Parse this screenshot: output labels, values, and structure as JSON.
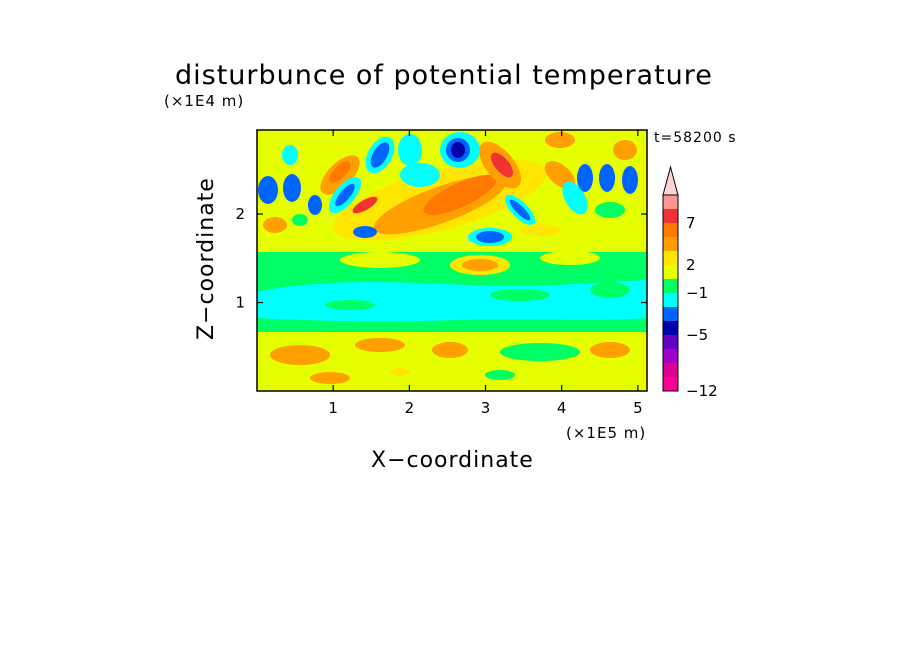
{
  "chart_data": {
    "type": "heatmap",
    "title": "disturbunce of potential temperature",
    "xlabel": "X−coordinate",
    "ylabel": "Z−coordinate",
    "x_unit": "(×1E5 m)",
    "z_unit": "(×1E4 m)",
    "time_label": "t=58200 s",
    "xlim": [
      0,
      5.12
    ],
    "zlim": [
      0,
      2.95
    ],
    "x_ticks": [
      1,
      2,
      3,
      4,
      5
    ],
    "z_ticks": [
      1,
      2
    ],
    "colorbar": {
      "labels": [
        "7",
        "2",
        "−1",
        "−5",
        "−12"
      ],
      "colors": [
        "#ff9696",
        "#f03232",
        "#ff7800",
        "#ffa000",
        "#ffe600",
        "#e6ff00",
        "#00ff64",
        "#00ffff",
        "#0064ff",
        "#0000aa",
        "#6400c8",
        "#a000c8",
        "#dc0096",
        "#ff0096"
      ],
      "top_color": "#ffd2d2",
      "extend": "max"
    }
  }
}
